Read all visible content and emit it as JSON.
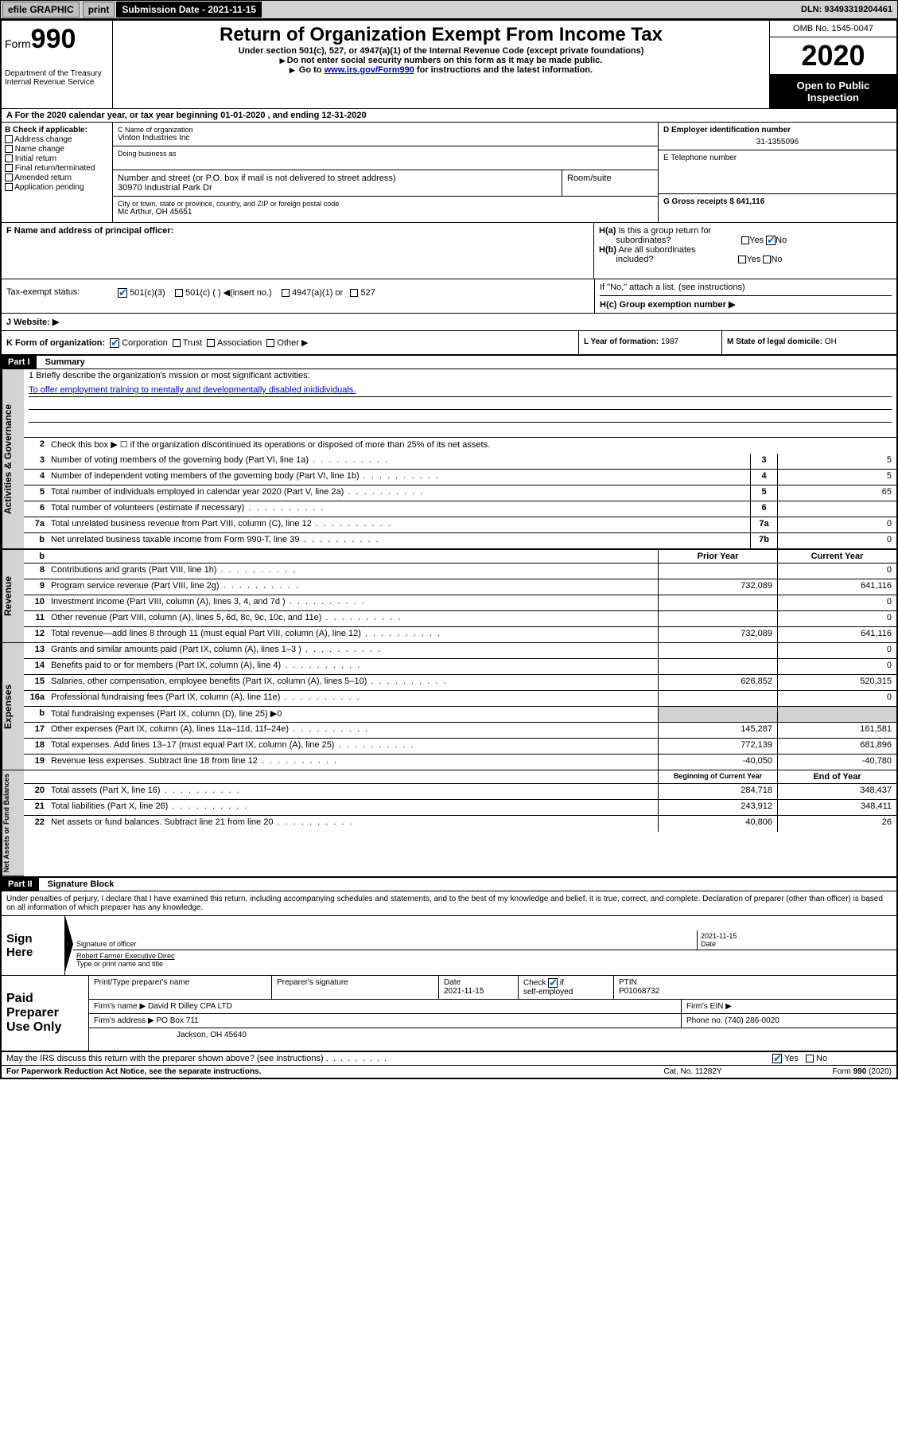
{
  "topbar": {
    "efile": "efile GRAPHIC",
    "print": "print",
    "submission": "Submission Date - 2021-11-15",
    "dln": "DLN: 93493319204461"
  },
  "header": {
    "form_label": "Form",
    "form_num": "990",
    "dept": "Department of the Treasury",
    "irs": "Internal Revenue Service",
    "title": "Return of Organization Exempt From Income Tax",
    "sub1": "Under section 501(c), 527, or 4947(a)(1) of the Internal Revenue Code (except private foundations)",
    "sub2": "Do not enter social security numbers on this form as it may be made public.",
    "sub3_pre": "Go to ",
    "sub3_link": "www.irs.gov/Form990",
    "sub3_post": " for instructions and the latest information.",
    "omb": "OMB No. 1545-0047",
    "year": "2020",
    "inspection": "Open to Public Inspection"
  },
  "rowA": "A For the 2020 calendar year, or tax year beginning 01-01-2020   , and ending 12-31-2020",
  "checkB": {
    "label": "B Check if applicable:",
    "opts": [
      "Address change",
      "Name change",
      "Initial return",
      "Final return/terminated",
      "Amended return",
      "Application pending"
    ]
  },
  "org": {
    "name_label": "C Name of organization",
    "name": "Vinton Industries Inc",
    "dba_label": "Doing business as",
    "addr_label": "Number and street (or P.O. box if mail is not delivered to street address)",
    "room_label": "Room/suite",
    "addr": "30970 Industrial Park Dr",
    "city_label": "City or town, state or province, country, and ZIP or foreign postal code",
    "city": "Mc Arthur, OH  45651"
  },
  "right": {
    "ein_label": "D Employer identification number",
    "ein": "31-1355096",
    "phone_label": "E Telephone number",
    "gross_label": "G Gross receipts $ 641,116"
  },
  "F_label": "F  Name and address of principal officer:",
  "H": {
    "a": "H(a)  Is this a group return for subordinates?",
    "b": "H(b)  Are all subordinates included?",
    "attach": "If \"No,\" attach a list. (see instructions)",
    "c": "H(c)  Group exemption number ▶",
    "yes": "Yes",
    "no": "No"
  },
  "I": {
    "label": "Tax-exempt status:",
    "opts": [
      "501(c)(3)",
      "501(c) (  ) ◀(insert no.)",
      "4947(a)(1) or",
      "527"
    ]
  },
  "J_label": "J   Website: ▶",
  "K_label": "K Form of organization:",
  "K_opts": [
    "Corporation",
    "Trust",
    "Association",
    "Other ▶"
  ],
  "L": {
    "label": "L Year of formation:",
    "val": "1987"
  },
  "M": {
    "label": "M State of legal domicile:",
    "val": "OH"
  },
  "partI": {
    "label": "Part I",
    "title": "Summary"
  },
  "mission_label": "1  Briefly describe the organization's mission or most significant activities:",
  "mission": "To offer employment training to mentally and developmentally disabled inididividuals.",
  "gov_lines": [
    {
      "n": "2",
      "d": "Check this box ▶ ☐  if the organization discontinued its operations or disposed of more than 25% of its net assets."
    },
    {
      "n": "3",
      "d": "Number of voting members of the governing body (Part VI, line 1a)",
      "box": "3",
      "v": "5"
    },
    {
      "n": "4",
      "d": "Number of independent voting members of the governing body (Part VI, line 1b)",
      "box": "4",
      "v": "5"
    },
    {
      "n": "5",
      "d": "Total number of individuals employed in calendar year 2020 (Part V, line 2a)",
      "box": "5",
      "v": "65"
    },
    {
      "n": "6",
      "d": "Total number of volunteers (estimate if necessary)",
      "box": "6",
      "v": ""
    },
    {
      "n": "7a",
      "d": "Total unrelated business revenue from Part VIII, column (C), line 12",
      "box": "7a",
      "v": "0"
    },
    {
      "n": "b",
      "d": "Net unrelated business taxable income from Form 990-T, line 39",
      "box": "7b",
      "v": "0"
    }
  ],
  "col_headers": {
    "prior": "Prior Year",
    "current": "Current Year"
  },
  "revenue": {
    "label": "Revenue",
    "rows": [
      {
        "n": "8",
        "d": "Contributions and grants (Part VIII, line 1h)",
        "p": "",
        "c": "0"
      },
      {
        "n": "9",
        "d": "Program service revenue (Part VIII, line 2g)",
        "p": "732,089",
        "c": "641,116"
      },
      {
        "n": "10",
        "d": "Investment income (Part VIII, column (A), lines 3, 4, and 7d )",
        "p": "",
        "c": "0"
      },
      {
        "n": "11",
        "d": "Other revenue (Part VIII, column (A), lines 5, 6d, 8c, 9c, 10c, and 11e)",
        "p": "",
        "c": "0"
      },
      {
        "n": "12",
        "d": "Total revenue—add lines 8 through 11 (must equal Part VIII, column (A), line 12)",
        "p": "732,089",
        "c": "641,116"
      }
    ]
  },
  "expenses": {
    "label": "Expenses",
    "rows": [
      {
        "n": "13",
        "d": "Grants and similar amounts paid (Part IX, column (A), lines 1–3 )",
        "p": "",
        "c": "0"
      },
      {
        "n": "14",
        "d": "Benefits paid to or for members (Part IX, column (A), line 4)",
        "p": "",
        "c": "0"
      },
      {
        "n": "15",
        "d": "Salaries, other compensation, employee benefits (Part IX, column (A), lines 5–10)",
        "p": "626,852",
        "c": "520,315"
      },
      {
        "n": "16a",
        "d": "Professional fundraising fees (Part IX, column (A), line 11e)",
        "p": "",
        "c": "0"
      },
      {
        "n": "b",
        "d": "Total fundraising expenses (Part IX, column (D), line 25) ▶0",
        "p": "grey",
        "c": "grey"
      },
      {
        "n": "17",
        "d": "Other expenses (Part IX, column (A), lines 11a–11d, 11f–24e)",
        "p": "145,287",
        "c": "161,581"
      },
      {
        "n": "18",
        "d": "Total expenses. Add lines 13–17 (must equal Part IX, column (A), line 25)",
        "p": "772,139",
        "c": "681,896"
      },
      {
        "n": "19",
        "d": "Revenue less expenses. Subtract line 18 from line 12",
        "p": "-40,050",
        "c": "-40,780"
      }
    ]
  },
  "net_headers": {
    "begin": "Beginning of Current Year",
    "end": "End of Year"
  },
  "netassets": {
    "label": "Net Assets or Fund Balances",
    "rows": [
      {
        "n": "20",
        "d": "Total assets (Part X, line 16)",
        "p": "284,718",
        "c": "348,437"
      },
      {
        "n": "21",
        "d": "Total liabilities (Part X, line 26)",
        "p": "243,912",
        "c": "348,411"
      },
      {
        "n": "22",
        "d": "Net assets or fund balances. Subtract line 21 from line 20",
        "p": "40,806",
        "c": "26"
      }
    ]
  },
  "partII": {
    "label": "Part II",
    "title": "Signature Block"
  },
  "declare": "Under penalties of perjury, I declare that I have examined this return, including accompanying schedules and statements, and to the best of my knowledge and belief, it is true, correct, and complete. Declaration of preparer (other than officer) is based on all information of which preparer has any knowledge.",
  "sign": {
    "here": "Sign Here",
    "sig_label": "Signature of officer",
    "date": "2021-11-15",
    "date_label": "Date",
    "name": "Robert Farmer  Executive Direc",
    "name_label": "Type or print name and title"
  },
  "paid": {
    "label": "Paid Preparer Use Only",
    "h1": "Print/Type preparer's name",
    "h2": "Preparer's signature",
    "h3": "Date",
    "h3v": "2021-11-15",
    "h4": "Check ☑ if self-employed",
    "h5": "PTIN",
    "h5v": "P01068732",
    "firm_label": "Firm's name    ▶",
    "firm": "David R Dilley CPA LTD",
    "ein_label": "Firm's EIN ▶",
    "addr_label": "Firm's address ▶",
    "addr1": "PO Box 711",
    "addr2": "Jackson, OH  45640",
    "phone_label": "Phone no.",
    "phone": "(740) 286-0020"
  },
  "footer": {
    "discuss": "May the IRS discuss this return with the preparer shown above? (see instructions)",
    "yes": "Yes",
    "no": "No",
    "pra": "For Paperwork Reduction Act Notice, see the separate instructions.",
    "catno": "Cat. No. 11282Y",
    "formno": "Form 990 (2020)"
  }
}
